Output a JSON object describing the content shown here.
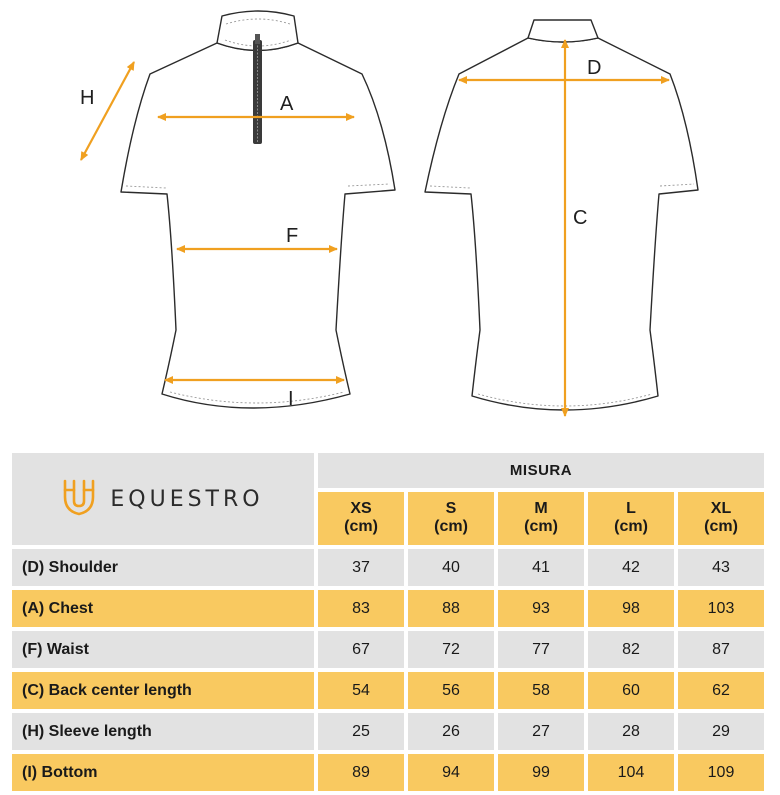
{
  "diagram": {
    "labels": {
      "A": "A",
      "F": "F",
      "I": "I",
      "H": "H",
      "D": "D",
      "C": "C"
    },
    "accent_color": "#f0a020",
    "front_view": "front-shirt",
    "back_view": "back-shirt"
  },
  "table": {
    "brand": "EQUESTRO",
    "group_header": "MISURA",
    "sizes": [
      {
        "size": "XS",
        "unit": "(cm)"
      },
      {
        "size": "S",
        "unit": "(cm)"
      },
      {
        "size": "M",
        "unit": "(cm)"
      },
      {
        "size": "L",
        "unit": "(cm)"
      },
      {
        "size": "XL",
        "unit": "(cm)"
      }
    ],
    "rows": [
      {
        "label": "(D) Shoulder",
        "values": [
          "37",
          "40",
          "41",
          "42",
          "43"
        ],
        "style": "grey"
      },
      {
        "label": "(A) Chest",
        "values": [
          "83",
          "88",
          "93",
          "98",
          "103"
        ],
        "style": "gold"
      },
      {
        "label": "(F) Waist",
        "values": [
          "67",
          "72",
          "77",
          "82",
          "87"
        ],
        "style": "grey"
      },
      {
        "label": "(C) Back center length",
        "values": [
          "54",
          "56",
          "58",
          "60",
          "62"
        ],
        "style": "gold"
      },
      {
        "label": "(H) Sleeve length",
        "values": [
          "25",
          "26",
          "27",
          "28",
          "29"
        ],
        "style": "grey"
      },
      {
        "label": "(I) Bottom",
        "values": [
          "89",
          "94",
          "99",
          "104",
          "109"
        ],
        "style": "gold"
      }
    ],
    "colors": {
      "grey": "#e2e2e2",
      "gold": "#f9c960"
    }
  }
}
